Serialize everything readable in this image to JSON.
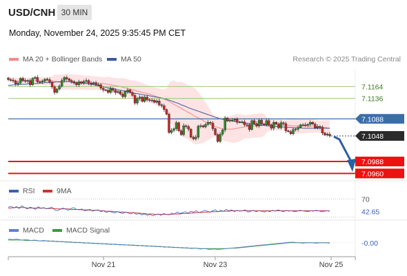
{
  "header": {
    "symbol": "USD/CNH",
    "timeframe": "30 MIN",
    "datetime": "Monday, November 24, 2025 9:35:45 PM CET"
  },
  "legend": {
    "ma20": "MA 20 + Bollinger Bands",
    "ma50": "MA 50",
    "research": "Research © 2025 Trading Central",
    "rsi": "RSI",
    "rsi_ma": "9MA",
    "macd": "MACD",
    "macd_signal": "MACD Signal"
  },
  "colors": {
    "up": "#2e8b2e",
    "down": "#c62828",
    "resistance": "#9cc97a",
    "support": "#ee1111",
    "price": "#3a6ea8",
    "ma20": "#f08a8a",
    "band": "#fde3e3",
    "ma50": "#3a5a9c",
    "arrow": "#2e5fa0",
    "rsi": "#3a5fb8",
    "rsi_ma": "#d23030",
    "macd_line": "#5b7fd8",
    "macd_signal": "#3a9a3a"
  },
  "chart_data": [
    {
      "type": "candlestick",
      "ylim": [
        7.0946,
        7.1205
      ],
      "x_ticks": [
        "Nov 21",
        "Nov 23",
        "Nov 25"
      ],
      "levels": {
        "resistance": [
          "7.1164",
          "7.1136"
        ],
        "current": "7.1088",
        "last": "7.1048",
        "support": [
          "7.0988",
          "7.0960"
        ]
      },
      "closes": [
        7.118,
        7.1179,
        7.1177,
        7.117,
        7.1172,
        7.1183,
        7.1178,
        7.1176,
        7.1178,
        7.1168,
        7.1183,
        7.1185,
        7.1175,
        7.1175,
        7.1176,
        7.1181,
        7.118,
        7.1174,
        7.1163,
        7.115,
        7.1158,
        7.1165,
        7.1178,
        7.1185,
        7.1182,
        7.1178,
        7.1174,
        7.1172,
        7.1168,
        7.1175,
        7.1171,
        7.1176,
        7.1178,
        7.1172,
        7.117,
        7.1173,
        7.1168,
        7.1168,
        7.116,
        7.1156,
        7.1155,
        7.115,
        7.1159,
        7.1155,
        7.115,
        7.1152,
        7.1146,
        7.114,
        7.1152,
        7.1156,
        7.115,
        7.1143,
        7.1125,
        7.1136,
        7.1139,
        7.1129,
        7.1139,
        7.1133,
        7.1132,
        7.1132,
        7.1127,
        7.113,
        7.1121,
        7.1119,
        7.111,
        7.1099,
        7.1056,
        7.1061,
        7.1065,
        7.1079,
        7.106,
        7.1051,
        7.1072,
        7.107,
        7.1064,
        7.1045,
        7.1041,
        7.1045,
        7.1071,
        7.1072,
        7.1069,
        7.1075,
        7.108,
        7.1078,
        7.1065,
        7.1051,
        7.1035,
        7.1052,
        7.1062,
        7.109,
        7.1083,
        7.1085,
        7.1085,
        7.1087,
        7.108,
        7.1081,
        7.1081,
        7.1074,
        7.1074,
        7.1063,
        7.1084,
        7.1077,
        7.1071,
        7.1085,
        7.1076,
        7.1074,
        7.1084,
        7.1074,
        7.1066,
        7.108,
        7.1076,
        7.1067,
        7.1079,
        7.1077,
        7.106,
        7.1058,
        7.1053,
        7.1063,
        7.1064,
        7.1068,
        7.1074,
        7.1074,
        7.1073,
        7.1075,
        7.108,
        7.1076,
        7.1067,
        7.107,
        7.1068,
        7.1055,
        7.105,
        7.1052,
        7.1048
      ],
      "ma20": [
        7.118,
        7.1179,
        7.1178,
        7.1177,
        7.1176,
        7.1177,
        7.1177,
        7.1177,
        7.1177,
        7.1176,
        7.1177,
        7.1178,
        7.1177,
        7.1177,
        7.1177,
        7.1177,
        7.1177,
        7.1177,
        7.1177,
        7.1176,
        7.1175,
        7.1174,
        7.1174,
        7.1175,
        7.1175,
        7.1175,
        7.1175,
        7.1174,
        7.1174,
        7.1174,
        7.1173,
        7.1173,
        7.1173,
        7.1173,
        7.1172,
        7.1172,
        7.1172,
        7.1171,
        7.1171,
        7.1171,
        7.117,
        7.1169,
        7.1168,
        7.1167,
        7.1166,
        7.1165,
        7.1164,
        7.1162,
        7.1161,
        7.116,
        7.1158,
        7.1157,
        7.1155,
        7.1153,
        7.1152,
        7.115,
        7.1149,
        7.1147,
        7.1146,
        7.1144,
        7.1142,
        7.114,
        7.1138,
        7.1136,
        7.1134,
        7.1132,
        7.1129,
        7.1126,
        7.1122,
        7.1119,
        7.1116,
        7.1113,
        7.1109,
        7.1106,
        7.1103,
        7.11,
        7.1096,
        7.1093,
        7.109,
        7.1087,
        7.1084,
        7.1081,
        7.1078,
        7.1075,
        7.1072,
        7.107,
        7.1068,
        7.1066,
        7.1065,
        7.1064,
        7.1064,
        7.1064,
        7.1064,
        7.1065,
        7.1066,
        7.1067,
        7.1068,
        7.1069,
        7.107,
        7.107,
        7.1071,
        7.1072,
        7.1072,
        7.1073,
        7.1073,
        7.1074,
        7.1074,
        7.1074,
        7.1074,
        7.1074,
        7.1074,
        7.1074,
        7.1074,
        7.1074,
        7.1073,
        7.1073,
        7.1072,
        7.1072,
        7.1071,
        7.1071,
        7.1071,
        7.1071,
        7.1071,
        7.1071,
        7.1071,
        7.1071,
        7.1071,
        7.107,
        7.107,
        7.1069,
        7.1068,
        7.1067,
        7.1066
      ],
      "ma50": [
        7.1167,
        7.1167,
        7.1168,
        7.1168,
        7.1168,
        7.1169,
        7.1169,
        7.1169,
        7.117,
        7.117,
        7.1171,
        7.1171,
        7.1171,
        7.1172,
        7.1172,
        7.1173,
        7.1173,
        7.1174,
        7.1174,
        7.1174,
        7.1175,
        7.1175,
        7.1175,
        7.1175,
        7.1175,
        7.1175,
        7.1175,
        7.1175,
        7.1174,
        7.1174,
        7.1173,
        7.1172,
        7.1171,
        7.117,
        7.1169,
        7.1168,
        7.1167,
        7.1166,
        7.1165,
        7.1164,
        7.1162,
        7.1161,
        7.116,
        7.1159,
        7.1158,
        7.1156,
        7.1155,
        7.1154,
        7.1153,
        7.1151,
        7.115,
        7.1149,
        7.1148,
        7.1147,
        7.1146,
        7.1145,
        7.1144,
        7.1143,
        7.1142,
        7.1141,
        7.114,
        7.1139,
        7.1138,
        7.1137,
        7.1136,
        7.1134,
        7.1132,
        7.113,
        7.1128,
        7.1126,
        7.1124,
        7.1121,
        7.1119,
        7.1117,
        7.1114,
        7.1112,
        7.111,
        7.1108,
        7.1106,
        7.1104,
        7.1102,
        7.11,
        7.1098,
        7.1096,
        7.1094,
        7.1092,
        7.109,
        7.1088,
        7.1087,
        7.1086,
        7.1085,
        7.1084,
        7.1083,
        7.1082,
        7.1081,
        7.108,
        7.1079,
        7.1078,
        7.1078,
        7.1077,
        7.1076,
        7.1075,
        7.1075,
        7.1074,
        7.1073,
        7.1073,
        7.1072,
        7.1072,
        7.1071,
        7.1071,
        7.107,
        7.107,
        7.1069,
        7.1069,
        7.1068,
        7.1068,
        7.1068,
        7.1067,
        7.1067,
        7.1067,
        7.1067,
        7.1066,
        7.1066,
        7.1066,
        7.1066,
        7.1066,
        7.1066,
        7.1066,
        7.1066,
        7.1066,
        7.1066,
        7.1066,
        7.1066
      ]
    },
    {
      "type": "line",
      "name": "RSI",
      "ylim": [
        25,
        75
      ],
      "ticks": [
        "70",
        "42.65"
      ],
      "rsi": [
        52,
        54,
        50,
        53,
        49,
        55,
        51,
        48,
        52,
        50,
        47,
        53,
        49,
        51,
        48,
        50,
        52,
        46,
        44,
        47,
        50,
        48,
        45,
        49,
        51,
        47,
        46,
        48,
        44,
        45,
        47,
        43,
        45,
        46,
        42,
        44,
        40,
        43,
        41,
        39,
        42,
        40,
        38,
        41,
        39,
        37,
        40,
        36,
        38,
        35,
        37,
        34,
        36,
        33,
        35,
        37,
        34,
        38,
        36,
        35,
        39,
        37,
        41,
        38,
        40,
        42,
        39,
        43,
        41,
        44,
        40,
        42,
        45,
        43,
        41,
        44,
        46,
        42,
        45,
        43,
        47,
        44,
        46,
        42,
        45,
        43,
        44,
        46,
        41,
        43,
        45,
        42,
        44,
        43,
        41,
        44,
        42,
        45,
        43,
        46,
        44,
        42,
        45,
        43,
        44,
        42,
        43,
        45,
        44,
        43,
        42,
        44,
        43,
        45,
        44,
        42,
        43,
        44,
        42.65
      ],
      "rsi_ma": [
        50,
        50,
        51,
        51,
        51,
        51,
        51,
        50,
        50,
        50,
        50,
        50,
        50,
        50,
        49,
        49,
        49,
        49,
        48,
        48,
        48,
        48,
        48,
        47,
        47,
        47,
        47,
        46,
        46,
        46,
        45,
        45,
        45,
        45,
        44,
        44,
        43,
        43,
        43,
        42,
        42,
        41,
        41,
        41,
        40,
        40,
        40,
        39,
        39,
        38,
        38,
        37,
        37,
        37,
        36,
        36,
        36,
        36,
        36,
        36,
        36,
        37,
        37,
        37,
        38,
        38,
        38,
        39,
        39,
        40,
        40,
        40,
        41,
        41,
        41,
        42,
        42,
        42,
        43,
        43,
        43,
        43,
        44,
        44,
        44,
        44,
        44,
        44,
        44,
        44,
        44,
        44,
        44,
        44,
        44,
        44,
        44,
        44,
        44,
        44,
        44,
        44,
        44,
        44,
        44,
        44,
        44,
        44,
        44,
        44,
        44,
        44,
        44,
        44,
        44,
        44,
        44,
        44,
        43.5
      ]
    },
    {
      "type": "line",
      "name": "MACD",
      "ylim": [
        -0.0025,
        0.0015
      ],
      "ticks": [
        "-0.00"
      ],
      "macd": [
        0.0008,
        0.0007,
        0.0008,
        0.0006,
        0.0007,
        0.0005,
        0.0006,
        0.0004,
        0.0005,
        0.0003,
        0.0004,
        0.0002,
        0.0003,
        0.0001,
        0.0002,
        0.0,
        0.0001,
        -0.0001,
        0.0,
        -0.0002,
        -0.0001,
        -0.0003,
        -0.0002,
        -0.0004,
        -0.0003,
        -0.0005,
        -0.0004,
        -0.0006,
        -0.0005,
        -0.0007,
        -0.0006,
        -0.0008,
        -0.0007,
        -0.0009,
        -0.0008,
        -0.001,
        -0.0009,
        -0.0011,
        -0.001,
        -0.0012,
        -0.0011,
        -0.0013,
        -0.0012,
        -0.0014,
        -0.0013,
        -0.0015,
        -0.0014,
        -0.0015,
        -0.0014,
        -0.0013,
        -0.0012,
        -0.0011,
        -0.001,
        -0.0009,
        -0.0008,
        -0.0007,
        -0.0006,
        -0.0005,
        -0.0004,
        -0.0003,
        -0.0002,
        -0.0001,
        0.0,
        0.0001,
        0.0001,
        0.0,
        -0.0001,
        0.0,
        0.0,
        -0.0001,
        0.0,
        0.0,
        -0.0001
      ],
      "signal": [
        0.0006,
        0.0006,
        0.0006,
        0.0006,
        0.0005,
        0.0005,
        0.0005,
        0.0004,
        0.0004,
        0.0004,
        0.0003,
        0.0003,
        0.0002,
        0.0002,
        0.0001,
        0.0001,
        0.0,
        0.0,
        -0.0001,
        -0.0001,
        -0.0002,
        -0.0002,
        -0.0003,
        -0.0003,
        -0.0004,
        -0.0004,
        -0.0005,
        -0.0005,
        -0.0006,
        -0.0006,
        -0.0007,
        -0.0007,
        -0.0008,
        -0.0008,
        -0.0009,
        -0.0009,
        -0.001,
        -0.001,
        -0.0011,
        -0.0011,
        -0.0012,
        -0.0012,
        -0.0012,
        -0.0013,
        -0.0013,
        -0.0013,
        -0.0013,
        -0.0013,
        -0.0013,
        -0.0013,
        -0.0012,
        -0.0012,
        -0.0011,
        -0.001,
        -0.0009,
        -0.0008,
        -0.0007,
        -0.0006,
        -0.0005,
        -0.0004,
        -0.0003,
        -0.0002,
        -0.0001,
        0.0,
        0.0,
        0.0,
        0.0,
        0.0,
        0.0,
        0.0,
        0.0,
        0.0,
        0.0
      ]
    }
  ]
}
